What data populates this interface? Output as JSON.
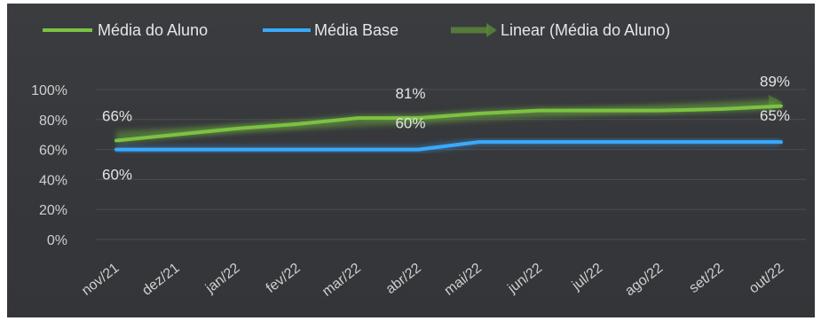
{
  "chart_data": {
    "type": "line",
    "categories": [
      "nov/21",
      "dez/21",
      "jan/22",
      "fev/22",
      "mar/22",
      "abr/22",
      "mai/22",
      "jun/22",
      "jul/22",
      "ago/22",
      "set/22",
      "out/22"
    ],
    "series": [
      {
        "name": "Média do Aluno",
        "color": "#7cc242",
        "values": [
          66,
          70,
          74,
          77,
          81,
          81,
          84,
          86,
          86,
          86,
          87,
          89
        ]
      },
      {
        "name": "Média Base",
        "color": "#3aa9ff",
        "values": [
          60,
          60,
          60,
          60,
          60,
          60,
          65,
          65,
          65,
          65,
          65,
          65
        ]
      }
    ],
    "trendline": {
      "name": "Linear (Média do Aluno)",
      "color": "#5d8a3a"
    },
    "yticks": [
      "0%",
      "20%",
      "40%",
      "60%",
      "80%",
      "100%"
    ],
    "ylim": [
      0,
      100
    ],
    "grid": true,
    "legend_position": "top",
    "data_labels": [
      {
        "series": 0,
        "index": 0,
        "text": "66%"
      },
      {
        "series": 0,
        "index": 5,
        "text": "81%"
      },
      {
        "series": 0,
        "index": 11,
        "text": "89%"
      },
      {
        "series": 1,
        "index": 0,
        "text": "60%"
      },
      {
        "series": 1,
        "index": 5,
        "text": "60%"
      },
      {
        "series": 1,
        "index": 11,
        "text": "65%"
      }
    ]
  }
}
